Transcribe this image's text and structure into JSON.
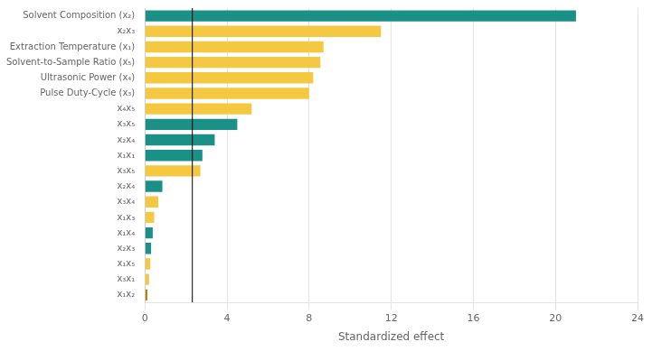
{
  "chart_data": {
    "type": "bar",
    "orientation": "horizontal",
    "categories": [
      "Solvent Composition (x₂)",
      "x₂x₃",
      "Extraction Temperature (x₁)",
      "Solvent-to-Sample Ratio (x₅)",
      "Ultrasonic Power (x₄)",
      "Pulse Duty-Cycle (x₃)",
      "x₄x₅",
      "x₃x₅",
      "x₂x₄",
      "x₁x₁",
      "x₃x₅",
      "x₂x₄",
      "x₃x₄",
      "x₁x₃",
      "x₁x₄",
      "x₂x₃",
      "x₁x₅",
      "x₃x₁",
      "x₁x₂"
    ],
    "values": [
      21.0,
      11.5,
      8.7,
      8.55,
      8.2,
      8.0,
      5.2,
      4.5,
      3.4,
      2.8,
      2.7,
      0.85,
      0.65,
      0.45,
      0.38,
      0.3,
      0.26,
      0.2,
      0.12
    ],
    "colors": [
      "#1a9087",
      "#f5c842",
      "#f5c842",
      "#f5c842",
      "#f5c842",
      "#f5c842",
      "#f5c842",
      "#1a9087",
      "#1a9087",
      "#1a9087",
      "#f5c842",
      "#1a9087",
      "#f5c842",
      "#f5c842",
      "#1a9087",
      "#1a9087",
      "#f5c842",
      "#f5c842",
      "#b8860b"
    ],
    "significance_line_x": 2.31,
    "xlabel": "Standardized effect",
    "xlim": [
      0,
      24
    ],
    "xticks": [
      0,
      4,
      8,
      12,
      16,
      20,
      24
    ],
    "grid": true
  }
}
